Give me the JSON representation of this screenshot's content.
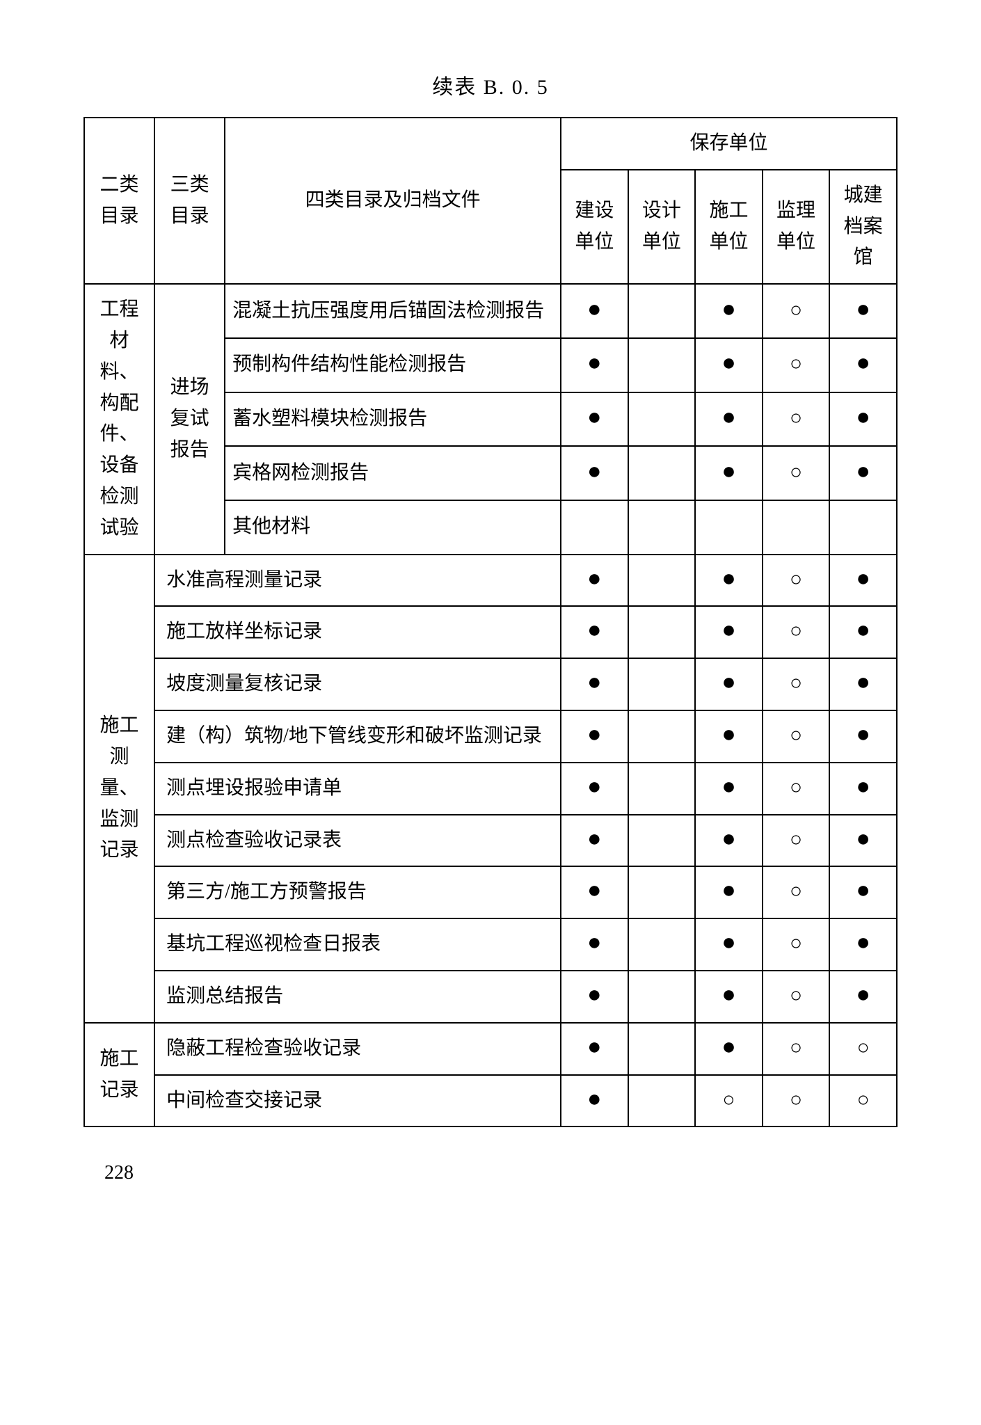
{
  "title": "续表 B. 0. 5",
  "page_number": "228",
  "marks": {
    "filled": "●",
    "open": "○",
    "blank": ""
  },
  "colors": {
    "text": "#000000",
    "border": "#000000",
    "background": "#ffffff"
  },
  "header": {
    "cat2": "二类目录",
    "cat3": "三类目录",
    "item": "四类目录及归档文件",
    "storage": "保存单位",
    "units": [
      "建设单位",
      "设计单位",
      "施工单位",
      "监理单位",
      "城建档案馆"
    ]
  },
  "sections": [
    {
      "cat2": "工程材料、构配件、设备检测试验",
      "cat3": "进场复试报告",
      "cat3_span": 5,
      "rows": [
        {
          "item": "混凝土抗压强度用后锚固法检测报告",
          "marks": [
            "filled",
            "blank",
            "filled",
            "open",
            "filled"
          ]
        },
        {
          "item": "预制构件结构性能检测报告",
          "marks": [
            "filled",
            "blank",
            "filled",
            "open",
            "filled"
          ]
        },
        {
          "item": "蓄水塑料模块检测报告",
          "marks": [
            "filled",
            "blank",
            "filled",
            "open",
            "filled"
          ]
        },
        {
          "item": "宾格网检测报告",
          "marks": [
            "filled",
            "blank",
            "filled",
            "open",
            "filled"
          ]
        },
        {
          "item": "其他材料",
          "marks": [
            "blank",
            "blank",
            "blank",
            "blank",
            "blank"
          ]
        }
      ]
    },
    {
      "cat2": "施工测量、监测记录",
      "span_item_with_cat3": true,
      "rows": [
        {
          "item": "水准高程测量记录",
          "marks": [
            "filled",
            "blank",
            "filled",
            "open",
            "filled"
          ]
        },
        {
          "item": "施工放样坐标记录",
          "marks": [
            "filled",
            "blank",
            "filled",
            "open",
            "filled"
          ]
        },
        {
          "item": "坡度测量复核记录",
          "marks": [
            "filled",
            "blank",
            "filled",
            "open",
            "filled"
          ]
        },
        {
          "item": "建（构）筑物/地下管线变形和破坏监测记录",
          "marks": [
            "filled",
            "blank",
            "filled",
            "open",
            "filled"
          ]
        },
        {
          "item": "测点埋设报验申请单",
          "marks": [
            "filled",
            "blank",
            "filled",
            "open",
            "filled"
          ]
        },
        {
          "item": "测点检查验收记录表",
          "marks": [
            "filled",
            "blank",
            "filled",
            "open",
            "filled"
          ]
        },
        {
          "item": "第三方/施工方预警报告",
          "marks": [
            "filled",
            "blank",
            "filled",
            "open",
            "filled"
          ]
        },
        {
          "item": "基坑工程巡视检查日报表",
          "marks": [
            "filled",
            "blank",
            "filled",
            "open",
            "filled"
          ]
        },
        {
          "item": "监测总结报告",
          "marks": [
            "filled",
            "blank",
            "filled",
            "open",
            "filled"
          ]
        }
      ]
    },
    {
      "cat2": "施工记录",
      "span_item_with_cat3": true,
      "rows": [
        {
          "item": "隐蔽工程检查验收记录",
          "marks": [
            "filled",
            "blank",
            "filled",
            "open",
            "open"
          ]
        },
        {
          "item": "中间检查交接记录",
          "marks": [
            "filled",
            "blank",
            "open",
            "open",
            "open"
          ]
        }
      ]
    }
  ]
}
